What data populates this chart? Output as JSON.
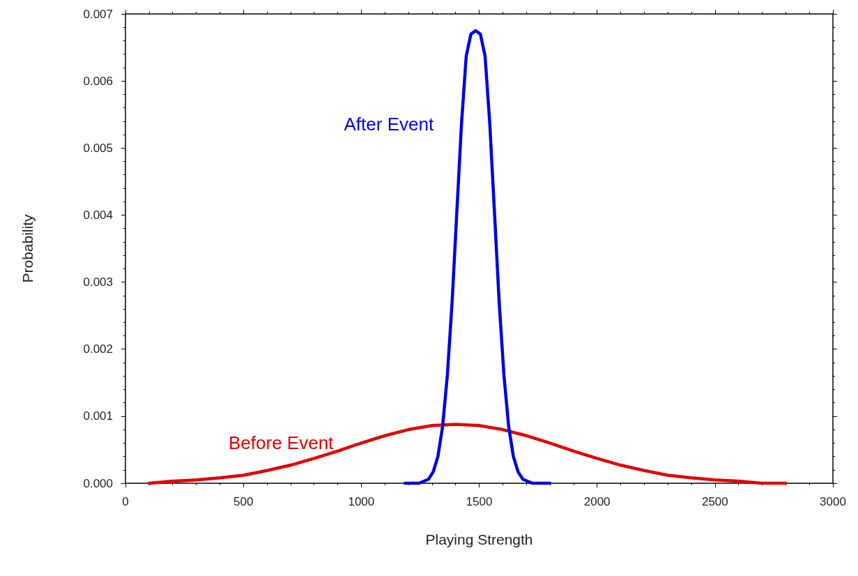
{
  "chart_data": {
    "type": "line",
    "xlabel": "Playing Strength",
    "ylabel": "Probability",
    "xlim": [
      0,
      3000
    ],
    "xticks": [
      0,
      500,
      1000,
      1500,
      2000,
      2500,
      3000
    ],
    "ylim": [
      0,
      0.007
    ],
    "yticks": [
      {
        "value": 0,
        "label": "0.000"
      },
      {
        "value": 0.001,
        "label": "0.001"
      },
      {
        "value": 0.002,
        "label": "0.002"
      },
      {
        "value": 0.003,
        "label": "0.003"
      },
      {
        "value": 0.004,
        "label": "0.004"
      },
      {
        "value": 0.005,
        "label": "0.005"
      },
      {
        "value": 0.006,
        "label": "0.006"
      },
      {
        "value": 0.007,
        "label": "0.007"
      }
    ],
    "grid": false,
    "legend": false,
    "marker": "none",
    "line_style": "solid",
    "series": [
      {
        "name": "Before Event",
        "color": "#e00000",
        "x": [
          100,
          200,
          300,
          400,
          500,
          600,
          700,
          800,
          900,
          1000,
          1100,
          1200,
          1300,
          1400,
          1500,
          1600,
          1700,
          1800,
          1900,
          2000,
          2100,
          2200,
          2300,
          2400,
          2500,
          2600,
          2700,
          2800
        ],
        "values": [
          0,
          3e-05,
          5e-05,
          8e-05,
          0.00012,
          0.00019,
          0.00027,
          0.00037,
          0.00048,
          0.0006,
          0.00071,
          0.0008,
          0.00086,
          0.00088,
          0.00086,
          0.0008,
          0.00071,
          0.0006,
          0.00048,
          0.00037,
          0.00027,
          0.00019,
          0.00012,
          8e-05,
          5e-05,
          3e-05,
          0,
          0
        ]
      },
      {
        "name": "After Event",
        "color": "#0000e0",
        "x": [
          1185,
          1245,
          1285,
          1305,
          1325,
          1345,
          1365,
          1385,
          1405,
          1425,
          1445,
          1465,
          1485,
          1505,
          1525,
          1545,
          1565,
          1585,
          1605,
          1625,
          1645,
          1665,
          1685,
          1725,
          1800
        ],
        "values": [
          0,
          0,
          6e-05,
          0.00017,
          0.0004,
          0.00085,
          0.00161,
          0.00269,
          0.00403,
          0.00536,
          0.00637,
          0.0067,
          0.00675,
          0.0067,
          0.00637,
          0.00536,
          0.00403,
          0.00269,
          0.00161,
          0.00085,
          0.0004,
          0.00017,
          6e-05,
          0,
          0
        ]
      }
    ]
  }
}
